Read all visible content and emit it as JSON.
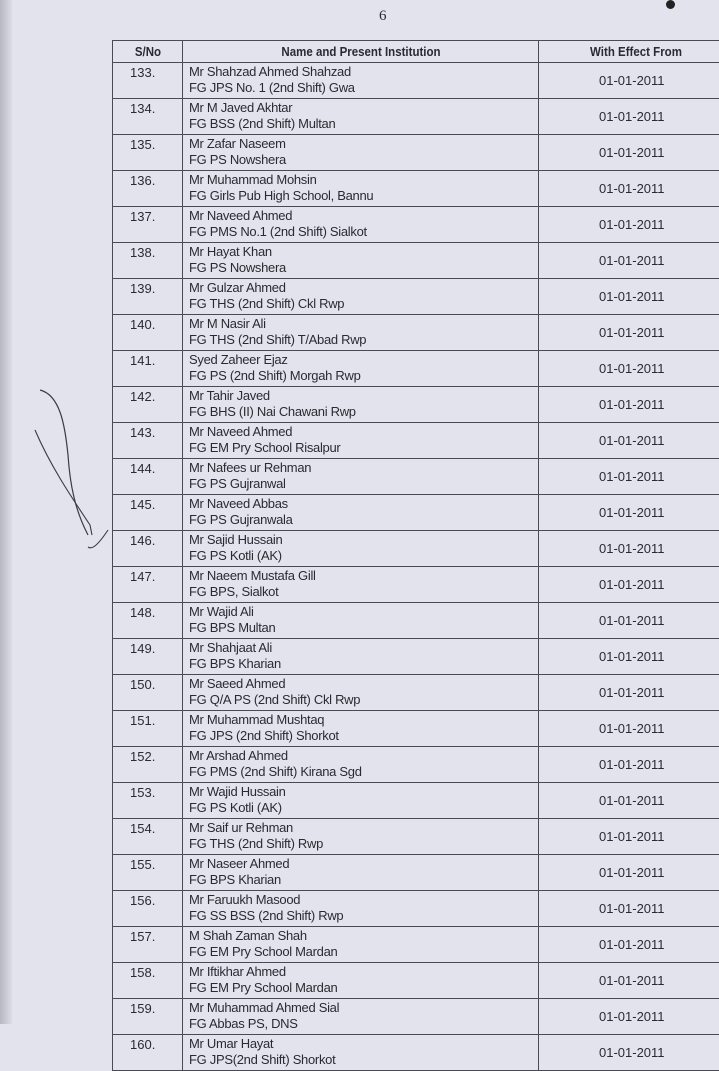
{
  "page_number": "6",
  "table": {
    "headers": [
      "S/No",
      "Name and Present Institution",
      "With Effect From"
    ],
    "rows": [
      {
        "sno": "133.",
        "name": "Mr Shahzad Ahmed Shahzad",
        "institution": "FG JPS No. 1 (2nd Shift) Gwa",
        "date": "01-01-2011"
      },
      {
        "sno": "134.",
        "name": "Mr M Javed Akhtar",
        "institution": "FG BSS (2nd Shift) Multan",
        "date": "01-01-2011"
      },
      {
        "sno": "135.",
        "name": "Mr Zafar Naseem",
        "institution": "FG PS Nowshera",
        "date": "01-01-2011"
      },
      {
        "sno": "136.",
        "name": "Mr Muhammad Mohsin",
        "institution": "FG Girls Pub High School, Bannu",
        "date": "01-01-2011"
      },
      {
        "sno": "137.",
        "name": "Mr Naveed Ahmed",
        "institution": "FG PMS No.1 (2nd Shift) Sialkot",
        "date": "01-01-2011"
      },
      {
        "sno": "138.",
        "name": "Mr Hayat Khan",
        "institution": "FG PS Nowshera",
        "date": "01-01-2011"
      },
      {
        "sno": "139.",
        "name": "Mr Gulzar Ahmed",
        "institution": "FG THS (2nd Shift) Ckl Rwp",
        "date": "01-01-2011"
      },
      {
        "sno": "140.",
        "name": "Mr M Nasir Ali",
        "institution": "FG THS (2nd Shift) T/Abad Rwp",
        "date": "01-01-2011"
      },
      {
        "sno": "141.",
        "name": "Syed Zaheer Ejaz",
        "institution": "FG PS (2nd Shift) Morgah Rwp",
        "date": "01-01-2011"
      },
      {
        "sno": "142.",
        "name": "Mr Tahir Javed",
        "institution": "FG BHS (II) Nai Chawani Rwp",
        "date": "01-01-2011"
      },
      {
        "sno": "143.",
        "name": "Mr Naveed Ahmed",
        "institution": "FG EM Pry School Risalpur",
        "date": "01-01-2011"
      },
      {
        "sno": "144.",
        "name": "Mr Nafees ur Rehman",
        "institution": "FG PS Gujranwal",
        "date": "01-01-2011"
      },
      {
        "sno": "145.",
        "name": "Mr Naveed Abbas",
        "institution": "FG PS Gujranwala",
        "date": "01-01-2011"
      },
      {
        "sno": "146.",
        "name": "Mr Sajid Hussain",
        "institution": "FG PS Kotli (AK)",
        "date": "01-01-2011"
      },
      {
        "sno": "147.",
        "name": "Mr Naeem Mustafa Gill",
        "institution": "FG BPS, Sialkot",
        "date": "01-01-2011"
      },
      {
        "sno": "148.",
        "name": "Mr Wajid Ali",
        "institution": "FG BPS Multan",
        "date": "01-01-2011"
      },
      {
        "sno": "149.",
        "name": "Mr Shahjaat Ali",
        "institution": "FG BPS Kharian",
        "date": "01-01-2011"
      },
      {
        "sno": "150.",
        "name": "Mr Saeed Ahmed",
        "institution": "FG Q/A PS (2nd Shift) Ckl Rwp",
        "date": "01-01-2011"
      },
      {
        "sno": "151.",
        "name": "Mr Muhammad Mushtaq",
        "institution": "FG JPS (2nd Shift) Shorkot",
        "date": "01-01-2011"
      },
      {
        "sno": "152.",
        "name": "Mr Arshad Ahmed",
        "institution": "FG PMS (2nd Shift) Kirana Sgd",
        "date": "01-01-2011"
      },
      {
        "sno": "153.",
        "name": "Mr Wajid Hussain",
        "institution": "FG PS Kotli (AK)",
        "date": "01-01-2011"
      },
      {
        "sno": "154.",
        "name": "Mr Saif ur Rehman",
        "institution": "FG THS (2nd Shift) Rwp",
        "date": "01-01-2011"
      },
      {
        "sno": "155.",
        "name": "Mr Naseer Ahmed",
        "institution": "FG BPS Kharian",
        "date": "01-01-2011"
      },
      {
        "sno": "156.",
        "name": "Mr Faruukh Masood",
        "institution": "FG SS BSS (2nd Shift) Rwp",
        "date": "01-01-2011"
      },
      {
        "sno": "157.",
        "name": "M Shah Zaman Shah",
        "institution": "FG EM Pry School Mardan",
        "date": "01-01-2011"
      },
      {
        "sno": "158.",
        "name": "Mr Iftikhar Ahmed",
        "institution": "FG EM Pry School Mardan",
        "date": "01-01-2011"
      },
      {
        "sno": "159.",
        "name": "Mr Muhammad Ahmed Sial",
        "institution": "FG Abbas PS, DNS",
        "date": "01-01-2011"
      },
      {
        "sno": "160.",
        "name": "Mr Umar Hayat",
        "institution": "FG JPS(2nd Shift) Shorkot",
        "date": "01-01-2011"
      }
    ]
  }
}
